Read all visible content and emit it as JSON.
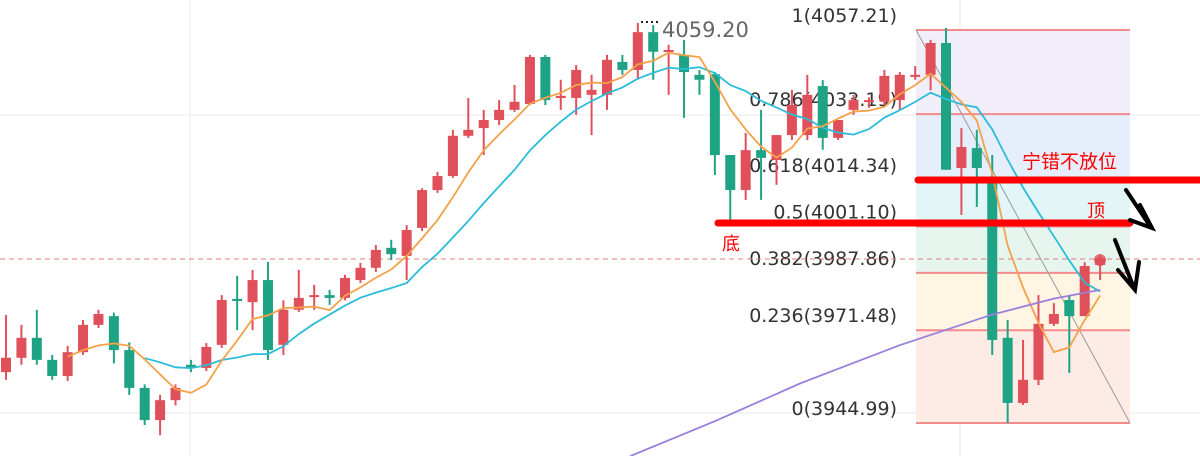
{
  "chart_data": {
    "type": "candlestick",
    "ylim": [
      3935.55,
      4065.78
    ],
    "grid": true,
    "colors": {
      "up": "#e0505a",
      "down": "#1fa385",
      "ma5": "#f5a14a",
      "ma10": "#2bbcd8",
      "ma_long": "#9b7fdc",
      "fib_line": "#f28b8b",
      "annotation": "#ff0000"
    },
    "high_label": "4059.20",
    "candles": [
      [
        3959.5,
        3975.8,
        3957.3,
        3963.6
      ],
      [
        3963.6,
        3973.0,
        3961.6,
        3969.3
      ],
      [
        3969.3,
        3977.3,
        3961.6,
        3963.0
      ],
      [
        3963.0,
        3964.4,
        3957.3,
        3958.4
      ],
      [
        3958.4,
        3967.0,
        3957.0,
        3965.2
      ],
      [
        3965.2,
        3974.4,
        3964.4,
        3973.0
      ],
      [
        3973.0,
        3977.3,
        3972.1,
        3976.1
      ],
      [
        3975.5,
        3976.5,
        3962.0,
        3965.8
      ],
      [
        3965.8,
        3968.0,
        3953.0,
        3955.0
      ],
      [
        3955.0,
        3956.0,
        3944.4,
        3945.8
      ],
      [
        3945.8,
        3953.0,
        3941.5,
        3951.5
      ],
      [
        3951.5,
        3956.0,
        3950.0,
        3955.0
      ],
      [
        3961.6,
        3963.0,
        3959.5,
        3960.7
      ],
      [
        3960.7,
        3967.8,
        3959.8,
        3966.7
      ],
      [
        3967.3,
        3981.5,
        3966.4,
        3980.1
      ],
      [
        3980.4,
        3987.0,
        3971.5,
        3980.1
      ],
      [
        3979.5,
        3988.7,
        3971.5,
        3985.8
      ],
      [
        3985.8,
        3991.0,
        3963.0,
        3965.8
      ],
      [
        3967.3,
        3980.0,
        3964.4,
        3977.3
      ],
      [
        3977.3,
        3988.7,
        3976.7,
        3980.7
      ],
      [
        3981.0,
        3984.4,
        3977.3,
        3981.5
      ],
      [
        3981.5,
        3983.0,
        3978.7,
        3980.7
      ],
      [
        3980.7,
        3987.3,
        3980.0,
        3986.4
      ],
      [
        3985.8,
        3990.7,
        3985.0,
        3989.3
      ],
      [
        3989.3,
        3995.8,
        3988.1,
        3994.4
      ],
      [
        3995.0,
        3997.3,
        3991.5,
        3993.2
      ],
      [
        3992.7,
        4001.5,
        3985.8,
        4000.1
      ],
      [
        4000.7,
        4012.0,
        3999.8,
        4011.5
      ],
      [
        4011.5,
        4016.7,
        4010.7,
        4015.5
      ],
      [
        4015.5,
        4028.7,
        4015.0,
        4027.0
      ],
      [
        4027.0,
        4037.8,
        4026.4,
        4028.7
      ],
      [
        4029.2,
        4034.4,
        4021.5,
        4031.5
      ],
      [
        4031.5,
        4037.2,
        4030.1,
        4034.4
      ],
      [
        4034.4,
        4041.5,
        4033.8,
        4036.7
      ],
      [
        4036.1,
        4050.1,
        4035.8,
        4049.5
      ],
      [
        4049.5,
        4050.1,
        4035.8,
        4037.2
      ],
      [
        4037.8,
        4043.0,
        4034.4,
        4038.4
      ],
      [
        4037.8,
        4047.2,
        4033.0,
        4045.8
      ],
      [
        4038.7,
        4044.4,
        4027.2,
        4040.1
      ],
      [
        4038.7,
        4050.1,
        4034.4,
        4048.7
      ],
      [
        4048.1,
        4050.1,
        4044.4,
        4045.8
      ],
      [
        4045.8,
        4059.2,
        4043.0,
        4056.6
      ],
      [
        4056.6,
        4058.6,
        4043.0,
        4051.0
      ],
      [
        4051.0,
        4053.0,
        4038.7,
        4051.5
      ],
      [
        4050.1,
        4054.4,
        4032.1,
        4045.2
      ],
      [
        4044.4,
        4045.8,
        4038.7,
        4043.0
      ],
      [
        4044.6,
        4045.2,
        4015.8,
        4021.5
      ],
      [
        4021.5,
        4021.5,
        4003.0,
        4011.5
      ],
      [
        4011.5,
        4027.8,
        4008.7,
        4022.9
      ],
      [
        4022.9,
        4034.4,
        4008.7,
        4020.7
      ],
      [
        4020.1,
        4027.2,
        4013.0,
        4027.2
      ],
      [
        4027.2,
        4040.1,
        4025.8,
        4035.8
      ],
      [
        4027.2,
        4044.4,
        4025.8,
        4038.7
      ],
      [
        4041.2,
        4042.9,
        4023.0,
        4026.4
      ],
      [
        4026.4,
        4031.5,
        4025.8,
        4031.5
      ],
      [
        4034.4,
        4038.7,
        4033.0,
        4037.2
      ],
      [
        4036.7,
        4038.0,
        4035.0,
        4037.2
      ],
      [
        4036.7,
        4045.8,
        4035.8,
        4044.1
      ],
      [
        4037.2,
        4045.2,
        4034.4,
        4044.4
      ],
      [
        4044.1,
        4046.9,
        4043.0,
        4044.4
      ],
      [
        4044.4,
        4054.4,
        4040.0,
        4053.5
      ],
      [
        4053.5,
        4057.8,
        4017.3,
        4017.3
      ],
      [
        4017.8,
        4029.2,
        4004.4,
        4023.8
      ],
      [
        4023.5,
        4028.7,
        4006.7,
        4017.8
      ],
      [
        4014.4,
        4021.5,
        3964.4,
        3968.7
      ],
      [
        3969.3,
        3974.4,
        3945.0,
        3950.7
      ],
      [
        3950.7,
        3968.7,
        3950.1,
        3957.3
      ],
      [
        3957.3,
        3981.5,
        3955.8,
        3973.3
      ],
      [
        3973.3,
        3979.2,
        3972.7,
        3976.1
      ],
      [
        3980.1,
        3981.3,
        3959.3,
        3975.5
      ],
      [
        3975.5,
        3990.9,
        3975.5,
        3989.8
      ],
      [
        3990.1,
        3993.0,
        3985.8,
        3992.1
      ]
    ],
    "ma_long": [
      [
        40.5,
        3935.5
      ],
      [
        46,
        3945.5
      ],
      [
        51.6,
        3956.4
      ],
      [
        58,
        3967.2
      ],
      [
        63.9,
        3975.8
      ],
      [
        68,
        3980.5
      ],
      [
        71,
        3983.0
      ]
    ],
    "current_price_line": 3991.8,
    "fibonacci": {
      "levels": [
        {
          "label": "1(4057.21)",
          "ratio": 1,
          "price": 4057.21,
          "band": "#f1eefa"
        },
        {
          "label": "0.786(4033.19)",
          "ratio": 0.786,
          "price": 4033.19,
          "band": "#e6eefc"
        },
        {
          "label": "0.618(4014.34)",
          "ratio": 0.618,
          "price": 4014.34,
          "band": "#e2f6f8"
        },
        {
          "label": "0.5(4001.10)",
          "ratio": 0.5,
          "price": 4001.1,
          "band": "#e6f6ef"
        },
        {
          "label": "0.382(3987.86)",
          "ratio": 0.382,
          "price": 3987.86,
          "band": "#fff5e2"
        },
        {
          "label": "0.236(3971.48)",
          "ratio": 0.236,
          "price": 3971.48,
          "band": "#fdebe6"
        },
        {
          "label": "0(3944.99)",
          "ratio": 0,
          "price": 3944.99,
          "band": ""
        }
      ]
    },
    "annotations": {
      "upper_line_label": "宁错不放位",
      "top_label": "顶",
      "bottom_label": "底"
    }
  }
}
